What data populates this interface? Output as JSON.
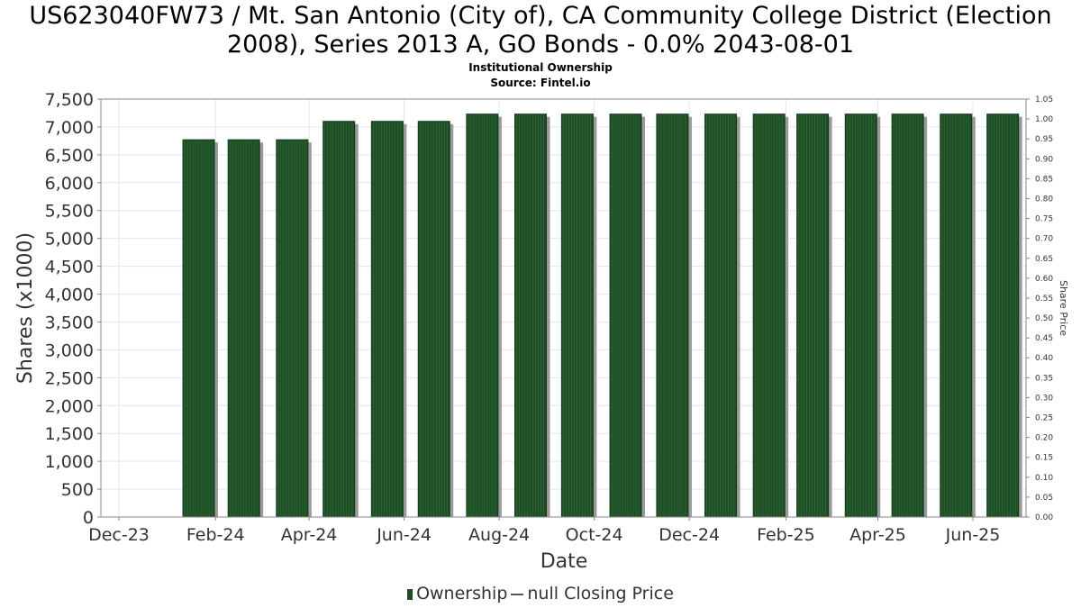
{
  "header": {
    "title_line1": "US623040FW73 / Mt. San Antonio (City of), CA Community College District (Election",
    "title_line2": "2008), Series 2013 A, GO Bonds - 0.0% 2043-08-01",
    "subtitle_line1": "Institutional Ownership",
    "subtitle_line2": "Source: Fintel.io"
  },
  "legend": {
    "ownership_label": "Ownership",
    "price_label": "null Closing Price"
  },
  "colors": {
    "bar": "#1e4d26",
    "bar_shadow": "#9a9a9a",
    "grid": "#e6e6e6",
    "axis": "#888888"
  },
  "chart_data": {
    "type": "bar",
    "xlabel": "Date",
    "ylabel": "Shares (x1000)",
    "y2label": "Share Price",
    "ylim": [
      0,
      7500
    ],
    "y2lim": [
      0,
      1.05
    ],
    "grid": true,
    "legend_position": "bottom",
    "x_ticks": [
      "Dec-23",
      "Feb-24",
      "Apr-24",
      "Jun-24",
      "Aug-24",
      "Oct-24",
      "Dec-24",
      "Feb-25",
      "Apr-25",
      "Jun-25"
    ],
    "y_ticks": [
      "0",
      "500",
      "1,000",
      "1,500",
      "2,000",
      "2,500",
      "3,000",
      "3,500",
      "4,000",
      "4,500",
      "5,000",
      "5,500",
      "6,000",
      "6,500",
      "7,000",
      "7,500"
    ],
    "y2_ticks": [
      "0.00",
      "0.05",
      "0.10",
      "0.15",
      "0.20",
      "0.25",
      "0.30",
      "0.35",
      "0.40",
      "0.45",
      "0.50",
      "0.55",
      "0.60",
      "0.65",
      "0.70",
      "0.75",
      "0.80",
      "0.85",
      "0.90",
      "0.95",
      "1.00",
      "1.05"
    ],
    "series": [
      {
        "name": "Ownership",
        "x": [
          "2024-01-31",
          "2024-02-29",
          "2024-03-31",
          "2024-04-30",
          "2024-05-31",
          "2024-06-30",
          "2024-07-31",
          "2024-08-31",
          "2024-09-30",
          "2024-10-31",
          "2024-11-30",
          "2024-12-31",
          "2025-01-31",
          "2025-02-28",
          "2025-03-31",
          "2025-04-30",
          "2025-05-31",
          "2025-06-30"
        ],
        "values": [
          6770,
          6770,
          6770,
          7100,
          7100,
          7100,
          7230,
          7230,
          7230,
          7230,
          7230,
          7230,
          7230,
          7230,
          7230,
          7230,
          7230,
          7230
        ]
      },
      {
        "name": "null Closing Price",
        "values": []
      }
    ]
  }
}
